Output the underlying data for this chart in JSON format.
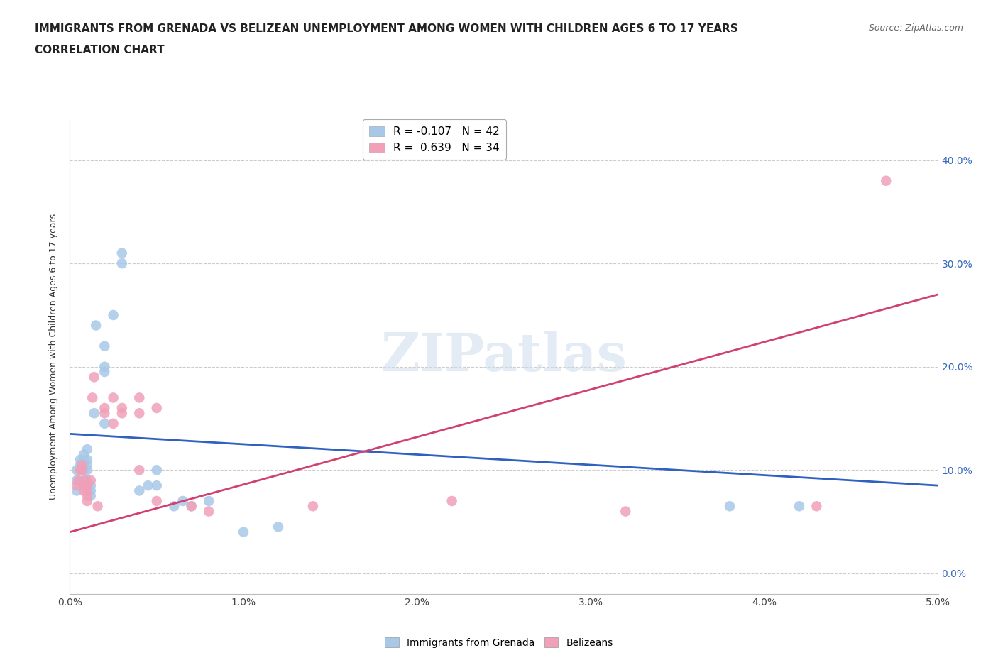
{
  "title_line1": "IMMIGRANTS FROM GRENADA VS BELIZEAN UNEMPLOYMENT AMONG WOMEN WITH CHILDREN AGES 6 TO 17 YEARS",
  "title_line2": "CORRELATION CHART",
  "source_text": "Source: ZipAtlas.com",
  "xmin": 0.0,
  "xmax": 0.05,
  "ymin": -0.02,
  "ymax": 0.44,
  "watermark": "ZIPatlas",
  "legend_label_grenada": "R = -0.107   N = 42",
  "legend_label_belize": "R =  0.639   N = 34",
  "grenada_color": "#a8c8e8",
  "belize_color": "#f0a0b8",
  "grenada_line_color": "#3060c0",
  "belize_line_color": "#d04070",
  "grenada_line": [
    [
      0.0,
      0.135
    ],
    [
      0.05,
      0.085
    ]
  ],
  "belize_line": [
    [
      0.0,
      0.04
    ],
    [
      0.05,
      0.27
    ]
  ],
  "grenada_points": [
    [
      0.0004,
      0.08
    ],
    [
      0.0004,
      0.09
    ],
    [
      0.0004,
      0.1
    ],
    [
      0.0006,
      0.1
    ],
    [
      0.0006,
      0.105
    ],
    [
      0.0006,
      0.11
    ],
    [
      0.0008,
      0.085
    ],
    [
      0.0008,
      0.09
    ],
    [
      0.0008,
      0.1
    ],
    [
      0.0008,
      0.105
    ],
    [
      0.0008,
      0.11
    ],
    [
      0.0008,
      0.115
    ],
    [
      0.001,
      0.085
    ],
    [
      0.001,
      0.09
    ],
    [
      0.001,
      0.1
    ],
    [
      0.001,
      0.105
    ],
    [
      0.001,
      0.11
    ],
    [
      0.001,
      0.12
    ],
    [
      0.0012,
      0.075
    ],
    [
      0.0012,
      0.08
    ],
    [
      0.0012,
      0.085
    ],
    [
      0.0014,
      0.155
    ],
    [
      0.0015,
      0.24
    ],
    [
      0.002,
      0.22
    ],
    [
      0.002,
      0.195
    ],
    [
      0.002,
      0.2
    ],
    [
      0.002,
      0.145
    ],
    [
      0.0025,
      0.25
    ],
    [
      0.003,
      0.3
    ],
    [
      0.003,
      0.31
    ],
    [
      0.004,
      0.08
    ],
    [
      0.0045,
      0.085
    ],
    [
      0.005,
      0.1
    ],
    [
      0.005,
      0.085
    ],
    [
      0.006,
      0.065
    ],
    [
      0.0065,
      0.07
    ],
    [
      0.007,
      0.065
    ],
    [
      0.008,
      0.07
    ],
    [
      0.01,
      0.04
    ],
    [
      0.012,
      0.045
    ],
    [
      0.038,
      0.065
    ],
    [
      0.042,
      0.065
    ]
  ],
  "belize_points": [
    [
      0.0004,
      0.085
    ],
    [
      0.0005,
      0.09
    ],
    [
      0.0006,
      0.1
    ],
    [
      0.0007,
      0.1
    ],
    [
      0.0007,
      0.105
    ],
    [
      0.0008,
      0.08
    ],
    [
      0.0008,
      0.085
    ],
    [
      0.0009,
      0.09
    ],
    [
      0.001,
      0.07
    ],
    [
      0.001,
      0.075
    ],
    [
      0.001,
      0.08
    ],
    [
      0.001,
      0.085
    ],
    [
      0.0012,
      0.09
    ],
    [
      0.0013,
      0.17
    ],
    [
      0.0014,
      0.19
    ],
    [
      0.0016,
      0.065
    ],
    [
      0.002,
      0.155
    ],
    [
      0.002,
      0.16
    ],
    [
      0.0025,
      0.145
    ],
    [
      0.0025,
      0.17
    ],
    [
      0.003,
      0.16
    ],
    [
      0.003,
      0.155
    ],
    [
      0.004,
      0.1
    ],
    [
      0.004,
      0.155
    ],
    [
      0.004,
      0.17
    ],
    [
      0.005,
      0.07
    ],
    [
      0.005,
      0.16
    ],
    [
      0.007,
      0.065
    ],
    [
      0.008,
      0.06
    ],
    [
      0.014,
      0.065
    ],
    [
      0.022,
      0.07
    ],
    [
      0.032,
      0.06
    ],
    [
      0.043,
      0.065
    ],
    [
      0.047,
      0.38
    ]
  ],
  "title_fontsize": 11,
  "tick_fontsize": 10,
  "legend_fontsize": 11,
  "ylabel_fontsize": 9,
  "background_color": "#ffffff",
  "grid_color": "#cccccc",
  "bottom_legend_label_grenada": "Immigrants from Grenada",
  "bottom_legend_label_belize": "Belizeans"
}
